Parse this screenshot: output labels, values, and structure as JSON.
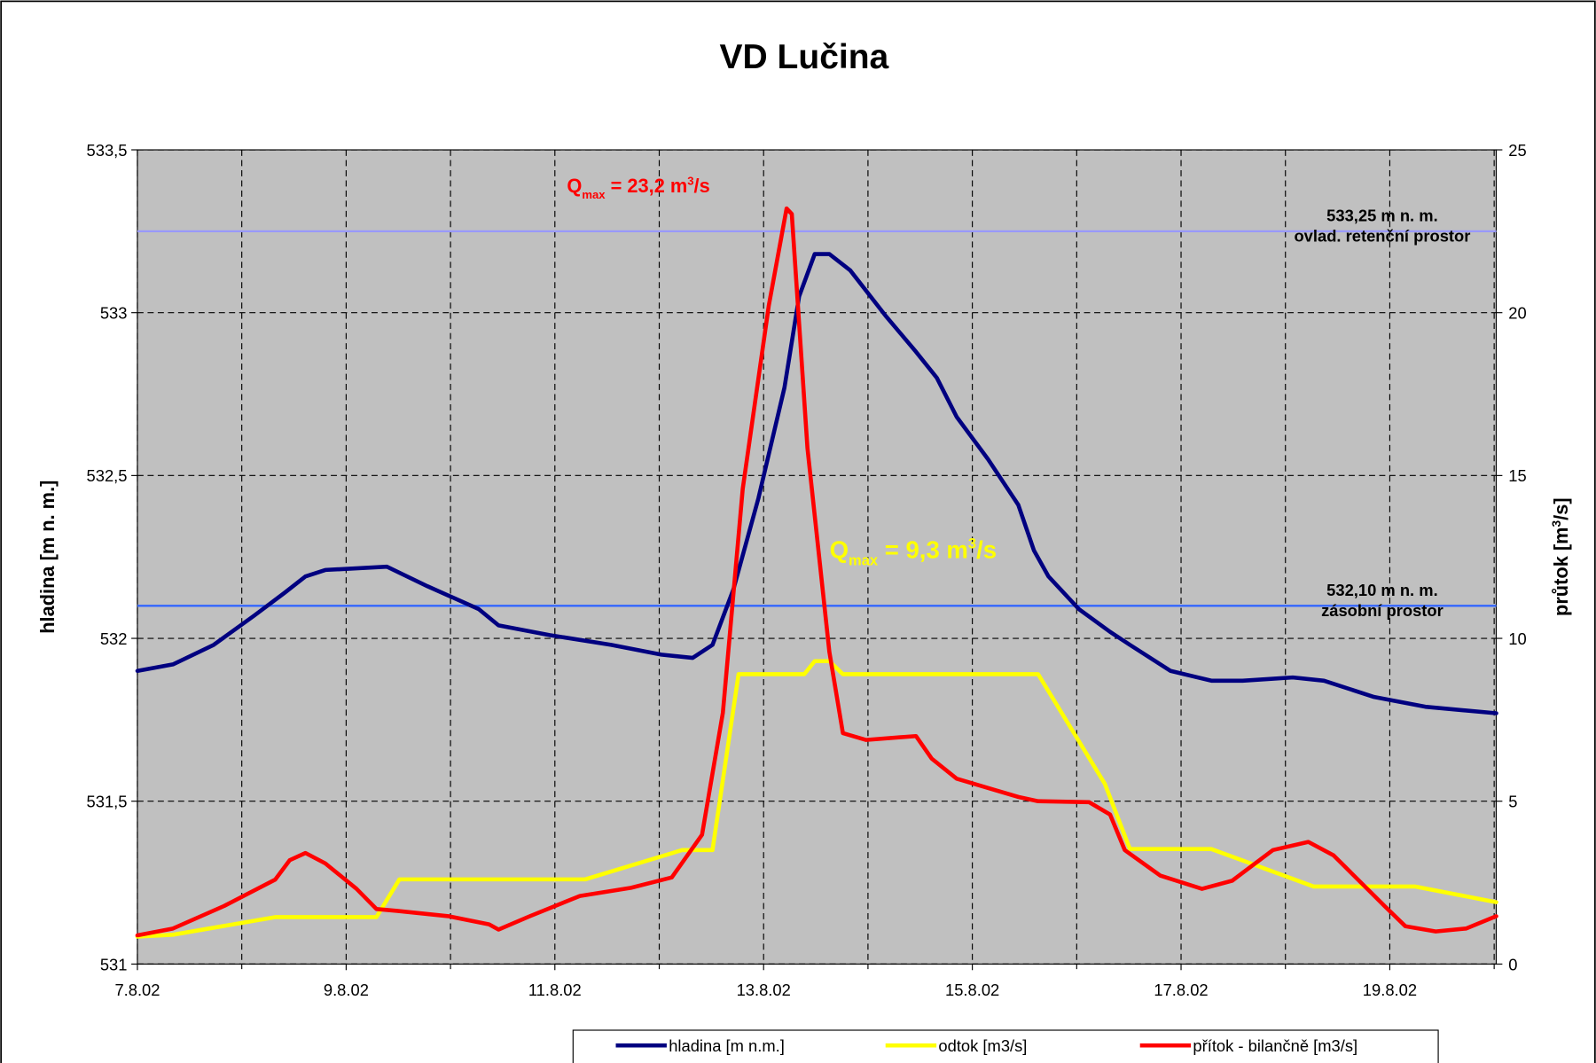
{
  "chart_data": {
    "type": "line",
    "title": "VD Lučina",
    "ylabel": "hladina [m n. m.]",
    "y2label": [
      "průtok [m",
      "3",
      "/s]"
    ],
    "xlim": [
      7,
      20.02
    ],
    "xticks": [
      {
        "value": 7,
        "label": "7.8.02"
      },
      {
        "value": 9,
        "label": "9.8.02"
      },
      {
        "value": 11,
        "label": "11.8.02"
      },
      {
        "value": 13,
        "label": "13.8.02"
      },
      {
        "value": 15,
        "label": "15.8.02"
      },
      {
        "value": 17,
        "label": "17.8.02"
      },
      {
        "value": 19,
        "label": "19.8.02"
      }
    ],
    "xminor_ticks": [
      8,
      10,
      12,
      14,
      16,
      18,
      20
    ],
    "ylim": [
      531,
      533.5
    ],
    "yticks": [
      531,
      {
        "value": 531.5,
        "label": "531,5"
      },
      532,
      {
        "value": 532.5,
        "label": "532,5"
      },
      533,
      {
        "value": 533.5,
        "label": "533,5"
      }
    ],
    "y2lim": [
      0,
      25
    ],
    "y2ticks": [
      0,
      5,
      10,
      15,
      20,
      25
    ],
    "grid": true,
    "background": "#c0c0c0",
    "legend": "bottom",
    "series": [
      {
        "name": "hladina [m n.m.]",
        "color": "#000080",
        "x": [
          7.0,
          7.34,
          7.73,
          8.12,
          8.41,
          8.61,
          8.8,
          9.39,
          9.78,
          10.27,
          10.46,
          10.95,
          11.54,
          12.02,
          12.32,
          12.51,
          12.71,
          12.95,
          13.2,
          13.34,
          13.49,
          13.63,
          13.83,
          14.17,
          14.46,
          14.66,
          14.85,
          15.15,
          15.44,
          15.59,
          15.73,
          16.02,
          16.32,
          16.51,
          16.9,
          17.29,
          17.59,
          18.07,
          18.37,
          18.85,
          19.34,
          20.02
        ],
        "values": [
          531.9,
          531.92,
          531.98,
          532.07,
          532.14,
          532.19,
          532.21,
          532.22,
          532.16,
          532.09,
          532.04,
          532.01,
          531.98,
          531.95,
          531.94,
          531.98,
          532.15,
          532.43,
          532.77,
          533.05,
          533.18,
          533.18,
          533.13,
          532.99,
          532.88,
          532.8,
          532.68,
          532.55,
          532.41,
          532.27,
          532.19,
          532.09,
          532.02,
          531.98,
          531.9,
          531.87,
          531.87,
          531.88,
          531.87,
          531.82,
          531.79,
          531.77
        ]
      },
      {
        "name": "odtok [m3/s]",
        "color": "#ffff00",
        "axis": "y2",
        "x": [
          7.0,
          7.34,
          8.32,
          9.29,
          9.51,
          11.29,
          12.22,
          12.51,
          12.76,
          13.39,
          13.49,
          13.63,
          13.76,
          15.63,
          16.27,
          16.51,
          17.29,
          18.27,
          19.24,
          20.02
        ],
        "values": [
          0.84,
          0.9,
          1.44,
          1.44,
          2.6,
          2.6,
          3.5,
          3.5,
          8.9,
          8.9,
          9.3,
          9.3,
          8.9,
          8.9,
          5.53,
          3.53,
          3.53,
          2.38,
          2.38,
          1.9
        ]
      },
      {
        "name": "přítok - bilančně [m3/s]",
        "color": "#ff0000",
        "axis": "y2",
        "x": [
          7.0,
          7.34,
          7.83,
          8.32,
          8.46,
          8.61,
          8.8,
          9.1,
          9.29,
          9.49,
          9.98,
          10.37,
          10.46,
          10.76,
          11.24,
          11.73,
          12.12,
          12.41,
          12.61,
          12.8,
          13.05,
          13.22,
          13.27,
          13.42,
          13.63,
          13.76,
          13.98,
          14.46,
          14.61,
          14.85,
          15.44,
          15.63,
          16.12,
          16.32,
          16.46,
          16.8,
          17.2,
          17.49,
          17.88,
          18.22,
          18.46,
          18.95,
          19.15,
          19.44,
          19.73,
          20.02
        ],
        "values": [
          0.88,
          1.09,
          1.78,
          2.59,
          3.19,
          3.41,
          3.09,
          2.31,
          1.69,
          1.63,
          1.47,
          1.22,
          1.06,
          1.47,
          2.09,
          2.34,
          2.66,
          3.97,
          7.72,
          14.59,
          20.22,
          23.2,
          23.03,
          15.84,
          9.59,
          7.09,
          6.88,
          7.0,
          6.31,
          5.69,
          5.13,
          5.0,
          4.97,
          4.59,
          3.5,
          2.72,
          2.31,
          2.56,
          3.5,
          3.75,
          3.34,
          1.78,
          1.16,
          1.0,
          1.09,
          1.47
        ]
      }
    ],
    "reference_lines": [
      {
        "value": 533.25,
        "color": "#9999ff",
        "label": [
          "533,25 m n. m.",
          "ovlad. retenční prostor"
        ]
      },
      {
        "value": 532.1,
        "color": "#3366ff",
        "label": [
          "532,10 m n. m.",
          "zásobní prostor"
        ]
      }
    ],
    "annotations": [
      {
        "color": "#ff0000",
        "text": [
          "Q",
          "max",
          " = 23,2 m",
          "3",
          "/s"
        ]
      },
      {
        "color": "#ffff00",
        "text": [
          "Q",
          "max",
          " = 9,3 m",
          "3",
          "/s"
        ]
      }
    ]
  }
}
